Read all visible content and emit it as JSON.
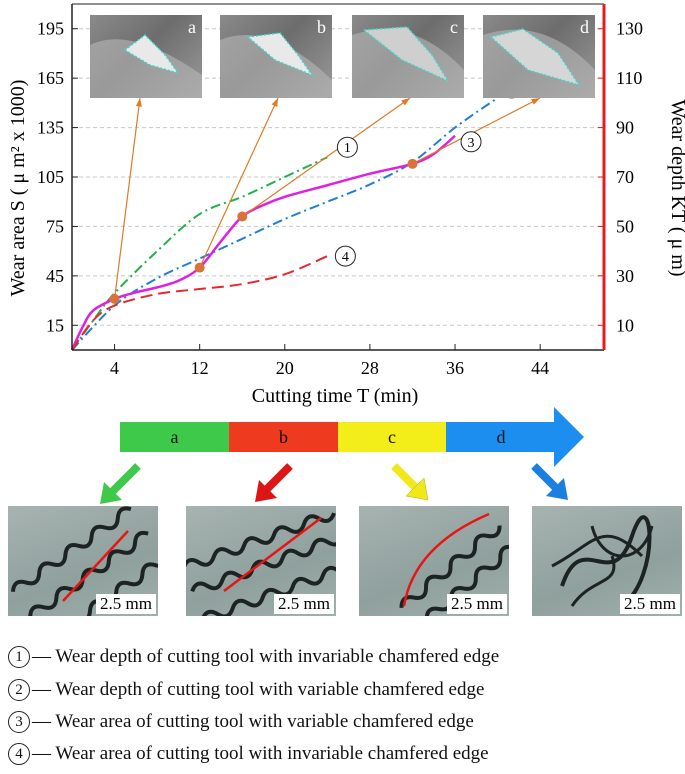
{
  "chart_data": {
    "type": "line",
    "xlabel": "Cutting time T (min)",
    "xlim": [
      0,
      50
    ],
    "xticks": [
      4,
      12,
      20,
      28,
      36,
      44
    ],
    "ylabel_left": "Wear area S ( μ m² x 1000)",
    "ylim_left": [
      0,
      210
    ],
    "yticks_left": [
      15,
      45,
      75,
      105,
      135,
      165,
      195
    ],
    "ylabel_right": "Wear depth KT ( μ m)",
    "ylim_right": [
      0,
      140
    ],
    "yticks_right": [
      10,
      30,
      50,
      70,
      90,
      110,
      130
    ],
    "grid": "horizontal dashed",
    "series": [
      {
        "id": "1",
        "name": "Wear depth of cutting tool with invariable chamfered edge",
        "axis": "right",
        "color": "#21b04b",
        "style": "dash-dot",
        "points": [
          [
            0,
            0
          ],
          [
            2,
            12
          ],
          [
            4,
            23
          ],
          [
            8,
            40
          ],
          [
            12,
            55
          ],
          [
            16,
            62
          ],
          [
            20,
            70
          ],
          [
            24,
            78
          ]
        ]
      },
      {
        "id": "2",
        "name": "Wear depth of cutting tool with variable chamfered edge",
        "axis": "right",
        "color": "#1f7fd6",
        "style": "dash-dot",
        "points": [
          [
            0,
            0
          ],
          [
            4,
            18
          ],
          [
            8,
            29
          ],
          [
            12,
            37
          ],
          [
            16,
            45
          ],
          [
            20,
            53
          ],
          [
            24,
            60
          ],
          [
            28,
            67
          ],
          [
            32,
            76
          ],
          [
            36,
            90
          ],
          [
            40,
            102
          ]
        ]
      },
      {
        "id": "3",
        "name": "Wear area of cutting tool with variable chamfered edge",
        "axis": "left",
        "color": "#e020e0",
        "style": "solid",
        "points": [
          [
            0,
            0
          ],
          [
            1,
            14
          ],
          [
            2,
            24
          ],
          [
            4,
            31
          ],
          [
            6,
            35
          ],
          [
            8,
            38
          ],
          [
            10,
            42
          ],
          [
            12,
            50
          ],
          [
            14,
            66
          ],
          [
            16,
            81
          ],
          [
            18,
            88
          ],
          [
            20,
            93
          ],
          [
            24,
            100
          ],
          [
            28,
            107
          ],
          [
            32,
            113
          ],
          [
            34,
            119
          ],
          [
            36,
            130
          ]
        ]
      },
      {
        "id": "4",
        "name": "Wear area of cutting tool with invariable chamfered edge",
        "axis": "left",
        "color": "#e8262d",
        "style": "dash",
        "points": [
          [
            0,
            0
          ],
          [
            2,
            18
          ],
          [
            4,
            27
          ],
          [
            8,
            34
          ],
          [
            12,
            37
          ],
          [
            16,
            40
          ],
          [
            20,
            46
          ],
          [
            24,
            57
          ]
        ]
      }
    ],
    "markers": [
      {
        "x": 4,
        "y": 31,
        "photo": "a"
      },
      {
        "x": 12,
        "y": 50,
        "photo": "b"
      },
      {
        "x": 16,
        "y": 81,
        "photo": "c"
      },
      {
        "x": 32,
        "y": 113,
        "photo": "d"
      }
    ],
    "inset_photos": [
      "a",
      "b",
      "c",
      "d"
    ],
    "series_labels": [
      "①",
      "②",
      "③",
      "④"
    ]
  },
  "stages": [
    {
      "label": "a",
      "color": "#3ec94a"
    },
    {
      "label": "b",
      "color": "#ee3a1e"
    },
    {
      "label": "c",
      "color": "#f3ee1a"
    },
    {
      "label": "d",
      "color": "#1b8ef0"
    }
  ],
  "chip_photos": [
    {
      "scale": "2.5 mm",
      "arrow_color": "#3ec94a"
    },
    {
      "scale": "2.5 mm",
      "arrow_color": "#dd1515"
    },
    {
      "scale": "2.5 mm",
      "arrow_color": "#f0e81a"
    },
    {
      "scale": "2.5 mm",
      "arrow_color": "#1b7fe0"
    }
  ],
  "legend": [
    {
      "num": "1",
      "text": "— Wear depth of cutting tool with invariable chamfered edge"
    },
    {
      "num": "2",
      "text": "— Wear depth of cutting tool with variable chamfered edge"
    },
    {
      "num": "3",
      "text": "— Wear area of cutting tool with variable chamfered edge"
    },
    {
      "num": "4",
      "text": "— Wear area of cutting tool with invariable chamfered edge"
    }
  ],
  "colors": {
    "axis_right": "#e81b1b",
    "arrow": "#e07a25",
    "marker": "#d8733a"
  }
}
